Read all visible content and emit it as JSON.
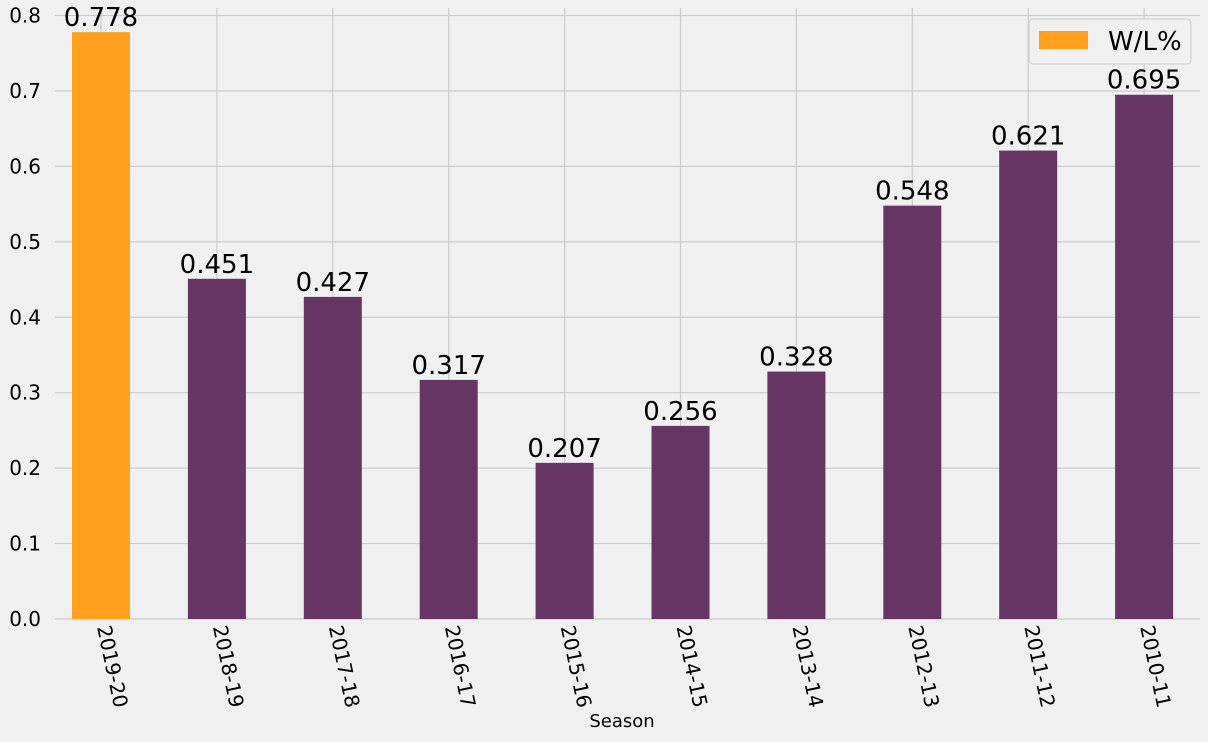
{
  "chart_data": {
    "type": "bar",
    "categories": [
      "2019-20",
      "2018-19",
      "2017-18",
      "2016-17",
      "2015-16",
      "2014-15",
      "2013-14",
      "2012-13",
      "2011-12",
      "2010-11"
    ],
    "values": [
      0.778,
      0.451,
      0.427,
      0.317,
      0.207,
      0.256,
      0.328,
      0.548,
      0.621,
      0.695
    ],
    "value_labels": [
      "0.778",
      "0.451",
      "0.427",
      "0.317",
      "0.207",
      "0.256",
      "0.328",
      "0.548",
      "0.621",
      "0.695"
    ],
    "series_name": "W/L%",
    "xlabel": "Season",
    "ylabel": "",
    "ylim": [
      0,
      0.81
    ],
    "yticks": [
      0.0,
      0.1,
      0.2,
      0.3,
      0.4,
      0.5,
      0.6,
      0.7,
      0.8
    ],
    "ytick_labels": [
      "0.0",
      "0.1",
      "0.2",
      "0.3",
      "0.4",
      "0.5",
      "0.6",
      "0.7",
      "0.8"
    ],
    "highlight_index": 0,
    "colors": {
      "highlight": "#ffa01e",
      "bar": "#663563",
      "grid": "#cbcbcb",
      "background": "#f0f0f0",
      "text": "#000000"
    },
    "grid": true,
    "legend_position": "top-right",
    "tick_label_rotation": "rotated"
  }
}
